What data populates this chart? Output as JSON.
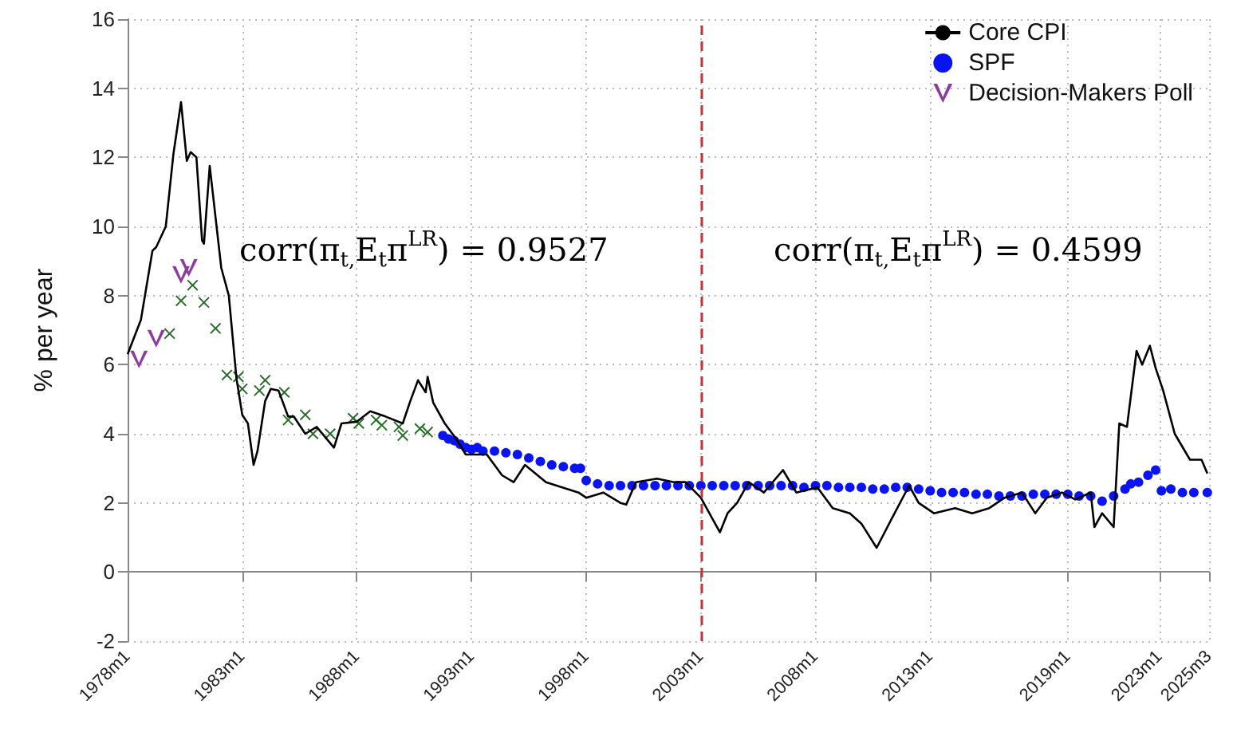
{
  "chart_data": {
    "type": "line",
    "ylabel": "% per year",
    "xlim": [
      "1978-01",
      "2025-03"
    ],
    "xticks": [
      {
        "value": "1978-01",
        "label": "1978m1"
      },
      {
        "value": "1983-01",
        "label": "1983m1"
      },
      {
        "value": "1988-01",
        "label": "1988m1"
      },
      {
        "value": "1993-01",
        "label": "1993m1"
      },
      {
        "value": "1998-01",
        "label": "1998m1"
      },
      {
        "value": "2003-01",
        "label": "2003m1"
      },
      {
        "value": "2008-01",
        "label": "2008m1"
      },
      {
        "value": "2013-01",
        "label": "2013m1"
      },
      {
        "value": "2019-01",
        "label": "2019m1"
      },
      {
        "value": "2023-01",
        "label": "2023m1"
      },
      {
        "value": "2025-03",
        "label": "2025m3"
      }
    ],
    "ylim": [
      -2,
      16
    ],
    "yticks": [
      -2,
      0,
      2,
      4,
      6,
      8,
      10,
      12,
      14,
      16
    ],
    "grid": true,
    "legend": "top right",
    "annotations": [
      "corr(π$_{t,}$E$_{t}$π$^{LR}$) = 0.9527",
      "corr(π$_{t,}$E$_{t}$π$^{LR}$) = 0.4599"
    ],
    "ref_lines": [
      {
        "axis": "x",
        "value": "2003-01",
        "color": "#b83a3a",
        "line_style": "dashed"
      }
    ],
    "series": [
      {
        "name": "Core CPI",
        "color": "#000000",
        "marker": "none",
        "line_style": "solid",
        "x": [
          "1978-01",
          "1978-08",
          "1979-02",
          "1979-04",
          "1979-09",
          "1980-01",
          "1980-05",
          "1980-08",
          "1980-10",
          "1981-01",
          "1981-04",
          "1981-05",
          "1981-08",
          "1982-02",
          "1982-06",
          "1982-10",
          "1983-01",
          "1983-04",
          "1983-07",
          "1983-09",
          "1984-01",
          "1984-04",
          "1984-08",
          "1985-01",
          "1985-04",
          "1985-10",
          "1986-04",
          "1987-01",
          "1987-05",
          "1988-01",
          "1988-08",
          "1989-04",
          "1990-01",
          "1990-05",
          "1990-09",
          "1991-01",
          "1991-02",
          "1991-05",
          "1991-11",
          "1992-05",
          "1992-10",
          "1993-09",
          "1994-05",
          "1994-11",
          "1995-05",
          "1996-04",
          "1997-09",
          "1998-01",
          "1998-10",
          "1999-07",
          "1999-10",
          "2000-03",
          "2001-02",
          "2001-11",
          "2002-05",
          "2003-01",
          "2003-07",
          "2003-11",
          "2004-03",
          "2004-08",
          "2005-02",
          "2005-10",
          "2006-08",
          "2007-03",
          "2008-02",
          "2008-10",
          "2009-07",
          "2010-01",
          "2010-09",
          "2011-05",
          "2012-02",
          "2012-07",
          "2013-03",
          "2014-02",
          "2014-11",
          "2015-08",
          "2016-04",
          "2017-01",
          "2017-08",
          "2018-02",
          "2018-10",
          "2019-05",
          "2020-01",
          "2020-03",
          "2020-07",
          "2021-01",
          "2021-04",
          "2021-08",
          "2022-01",
          "2022-04",
          "2022-08",
          "2022-11",
          "2023-03",
          "2023-09",
          "2024-05",
          "2024-11",
          "2025-02"
        ],
        "values": [
          6.3,
          7.3,
          9.3,
          9.4,
          10.0,
          12.1,
          13.6,
          11.9,
          12.15,
          12.0,
          9.6,
          9.5,
          11.75,
          8.8,
          8.0,
          5.6,
          4.55,
          4.3,
          3.1,
          3.5,
          4.95,
          5.3,
          5.25,
          4.5,
          4.5,
          4.0,
          4.2,
          3.6,
          4.3,
          4.35,
          4.65,
          4.5,
          4.3,
          4.95,
          5.55,
          5.2,
          5.65,
          4.9,
          4.3,
          3.85,
          3.4,
          3.4,
          2.8,
          2.6,
          3.1,
          2.6,
          2.3,
          2.15,
          2.3,
          2.0,
          1.95,
          2.6,
          2.7,
          2.6,
          2.6,
          2.15,
          1.55,
          1.15,
          1.7,
          2.0,
          2.6,
          2.3,
          2.95,
          2.3,
          2.45,
          1.85,
          1.7,
          1.4,
          0.7,
          1.55,
          2.5,
          2.0,
          1.7,
          1.85,
          1.7,
          1.85,
          2.15,
          2.3,
          1.7,
          2.15,
          2.3,
          2.1,
          2.3,
          1.3,
          1.7,
          1.3,
          4.3,
          4.2,
          6.4,
          6.0,
          6.55,
          5.9,
          5.25,
          4.0,
          3.25,
          3.25,
          2.85
        ]
      },
      {
        "name": "SPF",
        "type": "scatter",
        "color": "#0a14f0",
        "marker": "circle",
        "x": [
          "1991-10",
          "1992-01",
          "1992-04",
          "1992-07",
          "1992-10",
          "1993-01",
          "1993-04",
          "1993-07",
          "1994-01",
          "1994-07",
          "1995-01",
          "1995-07",
          "1996-01",
          "1996-07",
          "1997-01",
          "1997-07",
          "1997-10",
          "1998-01",
          "1998-07",
          "1999-01",
          "1999-07",
          "2000-01",
          "2000-07",
          "2001-01",
          "2001-07",
          "2002-01",
          "2002-07",
          "2003-01",
          "2003-07",
          "2004-01",
          "2004-07",
          "2005-01",
          "2005-07",
          "2006-01",
          "2006-07",
          "2007-01",
          "2007-07",
          "2008-01",
          "2008-07",
          "2009-01",
          "2009-07",
          "2010-01",
          "2010-07",
          "2011-01",
          "2011-07",
          "2012-01",
          "2012-07",
          "2013-01",
          "2013-07",
          "2014-01",
          "2014-07",
          "2015-01",
          "2015-07",
          "2016-01",
          "2016-07",
          "2017-01",
          "2017-07",
          "2018-01",
          "2018-07",
          "2019-01",
          "2019-07",
          "2020-01",
          "2020-07",
          "2021-01",
          "2021-07",
          "2021-10",
          "2022-02",
          "2022-07",
          "2022-11",
          "2023-02",
          "2023-07",
          "2024-01",
          "2024-07",
          "2025-02"
        ],
        "values": [
          3.95,
          3.85,
          3.8,
          3.7,
          3.6,
          3.55,
          3.6,
          3.5,
          3.5,
          3.45,
          3.4,
          3.3,
          3.2,
          3.1,
          3.05,
          3.0,
          3.0,
          2.65,
          2.55,
          2.5,
          2.5,
          2.5,
          2.5,
          2.5,
          2.5,
          2.5,
          2.5,
          2.5,
          2.5,
          2.5,
          2.5,
          2.5,
          2.5,
          2.5,
          2.5,
          2.5,
          2.45,
          2.5,
          2.5,
          2.45,
          2.45,
          2.45,
          2.4,
          2.4,
          2.45,
          2.45,
          2.4,
          2.35,
          2.3,
          2.3,
          2.3,
          2.25,
          2.25,
          2.2,
          2.2,
          2.2,
          2.25,
          2.25,
          2.25,
          2.25,
          2.2,
          2.2,
          2.05,
          2.2,
          2.4,
          2.55,
          2.6,
          2.8,
          2.95,
          2.35,
          2.4,
          2.3,
          2.3,
          2.3
        ]
      },
      {
        "type": "scatter",
        "color": "#2a6e2a",
        "marker": "cross",
        "x": [
          "1979-11",
          "1980-05",
          "1980-11",
          "1981-05",
          "1981-11",
          "1982-05",
          "1982-11",
          "1983-01",
          "1983-10",
          "1984-01",
          "1984-11",
          "1985-01",
          "1985-10",
          "1986-02",
          "1986-11",
          "1987-11",
          "1988-02",
          "1988-11",
          "1989-02",
          "1989-11",
          "1990-01",
          "1990-10",
          "1991-02"
        ],
        "values": [
          6.9,
          7.85,
          8.3,
          7.8,
          7.05,
          5.7,
          5.65,
          5.3,
          5.25,
          5.55,
          5.2,
          4.4,
          4.55,
          4.0,
          4.0,
          4.45,
          4.3,
          4.4,
          4.25,
          4.2,
          3.95,
          4.15,
          4.05
        ]
      },
      {
        "name": "Decision-Makers Poll",
        "type": "scatter",
        "color": "#8e3a9e",
        "marker": "triangle",
        "x": [
          "1978-07",
          "1979-04",
          "1980-05",
          "1980-09"
        ],
        "values": [
          6.15,
          6.75,
          8.6,
          8.8
        ]
      }
    ]
  }
}
